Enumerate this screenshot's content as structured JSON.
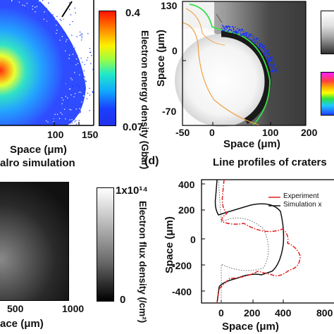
{
  "panel_a": {
    "xticks": [
      "100",
      "150"
    ],
    "xlabel": "Space (μm)",
    "colorbar": {
      "max": "0.4",
      "min": "0.07",
      "label": "Electron energy density (Gbar)"
    },
    "colors": {
      "core": "#ff2a00",
      "mid": "#00c8ff",
      "edge": "#1a3cff"
    }
  },
  "panel_b": {
    "yticks": [
      "130",
      "0",
      "-70"
    ],
    "ylabel": "Space (μm)",
    "xticks": [
      "-50",
      "0",
      "100",
      "200"
    ],
    "xlabel": "Space (μm)",
    "colors": {
      "contour_green": "#37e04a",
      "contour_orange": "#f2a040",
      "edge_blue": "#1530ff"
    }
  },
  "panel_c": {
    "title": "alro simulation",
    "xticks": [
      "500",
      "1000"
    ],
    "xlabel": "ace (μm)",
    "colorbar": {
      "max": "1x10¹⁴",
      "min": "0",
      "label": "Electron flux density (/cm²)"
    }
  },
  "panel_d": {
    "letter": "(d)",
    "title": "Line profiles of craters",
    "yticks": [
      "400",
      "200",
      "0",
      "-200",
      "-400"
    ],
    "ylabel": "Space (μm)",
    "xticks": [
      "0",
      "200",
      "400",
      "800"
    ],
    "xlabel": "Space (μm)",
    "legend": [
      {
        "name": "Experiment",
        "color": "#e02020"
      },
      {
        "name": "Simulation x",
        "color": "#111111"
      }
    ]
  }
}
